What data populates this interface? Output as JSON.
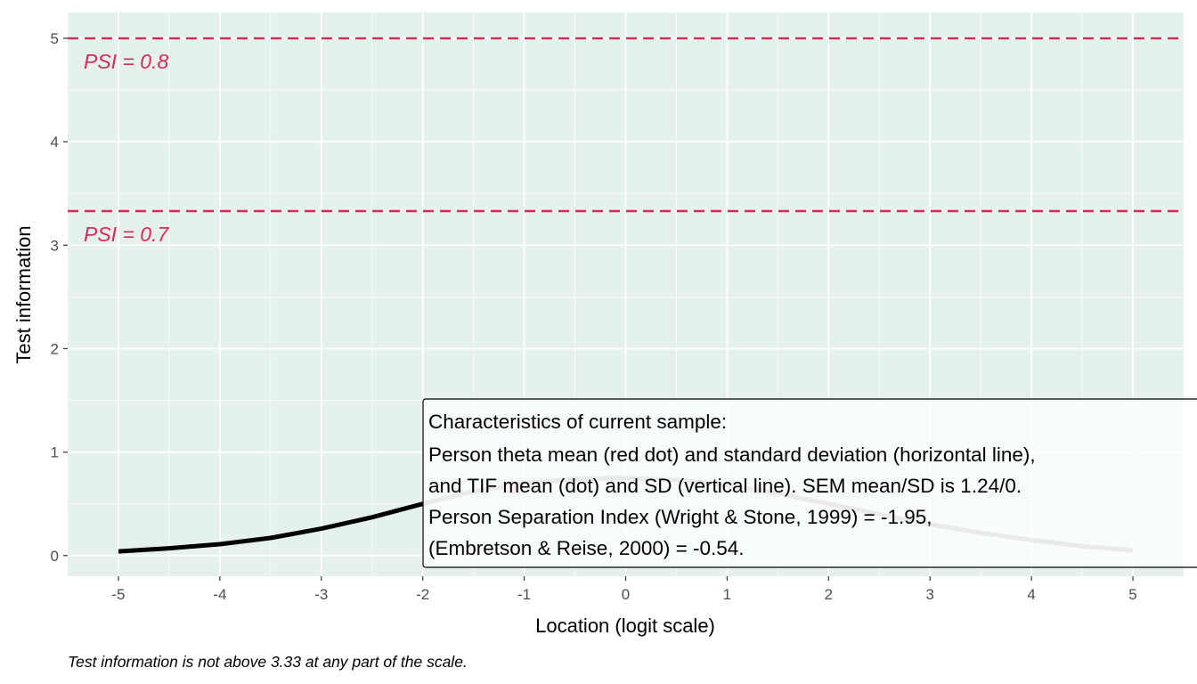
{
  "chart_data": {
    "type": "line",
    "xlabel": "Location (logit scale)",
    "ylabel": "Test information",
    "xlim": [
      -5.5,
      5.5
    ],
    "ylim": [
      -0.2,
      5.25
    ],
    "x_ticks": [
      -5,
      -4,
      -3,
      -2,
      -1,
      0,
      1,
      2,
      3,
      4,
      5
    ],
    "y_ticks": [
      0,
      1,
      2,
      3,
      4,
      5
    ],
    "grid": true,
    "panel_background": "#e5f2ec",
    "series": [
      {
        "x": [
          -5,
          -4.5,
          -4,
          -3.5,
          -3,
          -2.5,
          -2,
          -1.5,
          -1,
          -0.5,
          0,
          0.5,
          1,
          1.5,
          2,
          2.5,
          3,
          3.5,
          4,
          4.5,
          5
        ],
        "y": [
          0.04,
          0.07,
          0.11,
          0.17,
          0.26,
          0.37,
          0.5,
          0.62,
          0.7,
          0.74,
          0.75,
          0.73,
          0.68,
          0.6,
          0.5,
          0.4,
          0.3,
          0.22,
          0.15,
          0.09,
          0.05
        ],
        "segments": [
          {
            "x_from": -5,
            "x_to": -2,
            "color": "#000000"
          },
          {
            "x_from": -2,
            "x_to": 5,
            "color": "#b3b3b3"
          }
        ]
      }
    ],
    "reference_lines": [
      {
        "y": 3.33,
        "label": "PSI = 0.7",
        "color": "#d6295c"
      },
      {
        "y": 5.0,
        "label": "PSI = 0.8",
        "color": "#d6295c"
      }
    ],
    "points": [
      {
        "x": -1.12,
        "y": 0.66,
        "color": "#f7c1cf"
      }
    ],
    "annotation": {
      "lines": [
        "Characteristics of current sample:",
        "Person theta mean (red dot) and standard deviation (horizontal line),",
        "and TIF mean (dot) and SD (vertical line). SEM mean/SD is 1.24/0.",
        "Person Separation Index (Wright & Stone, 1999) = -1.95,",
        "(Embretson & Reise, 2000) = -0.54."
      ]
    },
    "caption": "Test information is not above 3.33 at any part of the scale."
  }
}
